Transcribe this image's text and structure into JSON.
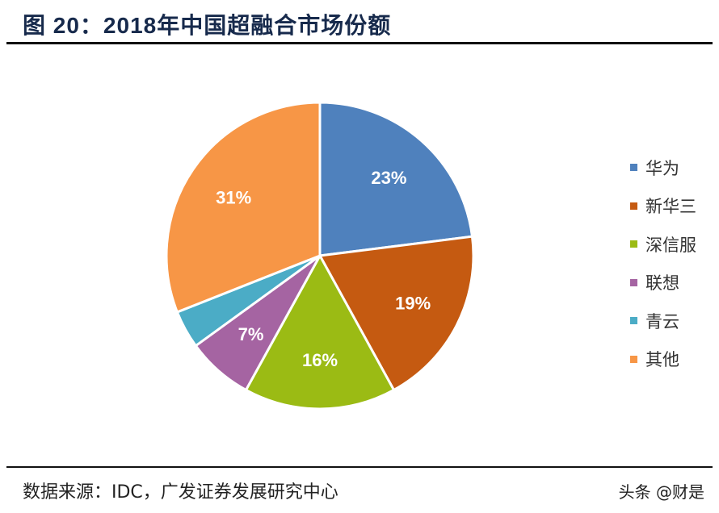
{
  "title": "图 20：2018年中国超融合市场份额",
  "source": "数据来源：IDC，广发证券发展研究中心",
  "watermark": "头条 @财是",
  "chart_data": {
    "type": "pie",
    "title": "图 20：2018年中国超融合市场份额",
    "categories": [
      "华为",
      "新华三",
      "深信服",
      "联想",
      "青云",
      "其他"
    ],
    "values": [
      23,
      19,
      16,
      7,
      4,
      31
    ],
    "labels": [
      "23%",
      "19%",
      "16%",
      "7%",
      "",
      "31%"
    ],
    "colors": [
      "#4f81bd",
      "#c55a11",
      "#9bbb14",
      "#a564a2",
      "#4bacc6",
      "#f79646"
    ],
    "legend_position": "right",
    "start_angle": "top, clockwise"
  }
}
